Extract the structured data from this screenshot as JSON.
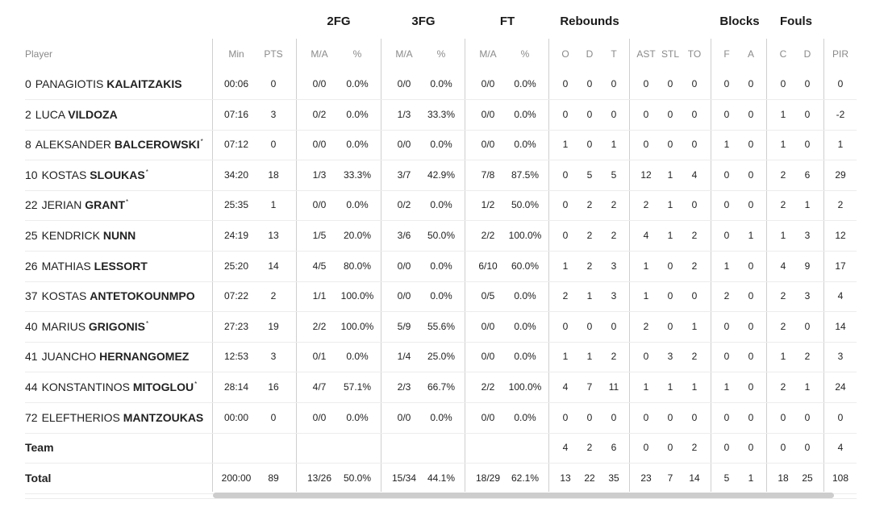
{
  "groups": {
    "fg2": "2FG",
    "fg3": "3FG",
    "ft": "FT",
    "rebounds": "Rebounds",
    "blocks": "Blocks",
    "fouls": "Fouls"
  },
  "headers": {
    "player": "Player",
    "min": "Min",
    "pts": "PTS",
    "fg2_ma": "M/A",
    "fg2_pct": "%",
    "fg3_ma": "M/A",
    "fg3_pct": "%",
    "ft_ma": "M/A",
    "ft_pct": "%",
    "reb_o": "O",
    "reb_d": "D",
    "reb_t": "T",
    "ast": "AST",
    "stl": "STL",
    "to": "TO",
    "blk_f": "F",
    "blk_a": "A",
    "foul_c": "C",
    "foul_d": "D",
    "pir": "PIR"
  },
  "players": [
    {
      "num": "0",
      "first": "PANAGIOTIS",
      "last": "KALAITZAKIS",
      "mark": "",
      "min": "00:06",
      "pts": "0",
      "fg2_ma": "0/0",
      "fg2_pct": "0.0%",
      "fg3_ma": "0/0",
      "fg3_pct": "0.0%",
      "ft_ma": "0/0",
      "ft_pct": "0.0%",
      "reb_o": "0",
      "reb_d": "0",
      "reb_t": "0",
      "ast": "0",
      "stl": "0",
      "to": "0",
      "blk_f": "0",
      "blk_a": "0",
      "foul_c": "0",
      "foul_d": "0",
      "pir": "0"
    },
    {
      "num": "2",
      "first": "LUCA",
      "last": "VILDOZA",
      "mark": "",
      "min": "07:16",
      "pts": "3",
      "fg2_ma": "0/2",
      "fg2_pct": "0.0%",
      "fg3_ma": "1/3",
      "fg3_pct": "33.3%",
      "ft_ma": "0/0",
      "ft_pct": "0.0%",
      "reb_o": "0",
      "reb_d": "0",
      "reb_t": "0",
      "ast": "0",
      "stl": "0",
      "to": "0",
      "blk_f": "0",
      "blk_a": "0",
      "foul_c": "1",
      "foul_d": "0",
      "pir": "-2"
    },
    {
      "num": "8",
      "first": "ALEKSANDER",
      "last": "BALCEROWSKI",
      "mark": "*",
      "min": "07:12",
      "pts": "0",
      "fg2_ma": "0/0",
      "fg2_pct": "0.0%",
      "fg3_ma": "0/0",
      "fg3_pct": "0.0%",
      "ft_ma": "0/0",
      "ft_pct": "0.0%",
      "reb_o": "1",
      "reb_d": "0",
      "reb_t": "1",
      "ast": "0",
      "stl": "0",
      "to": "0",
      "blk_f": "1",
      "blk_a": "0",
      "foul_c": "1",
      "foul_d": "0",
      "pir": "1"
    },
    {
      "num": "10",
      "first": "KOSTAS",
      "last": "SLOUKAS",
      "mark": "*",
      "min": "34:20",
      "pts": "18",
      "fg2_ma": "1/3",
      "fg2_pct": "33.3%",
      "fg3_ma": "3/7",
      "fg3_pct": "42.9%",
      "ft_ma": "7/8",
      "ft_pct": "87.5%",
      "reb_o": "0",
      "reb_d": "5",
      "reb_t": "5",
      "ast": "12",
      "stl": "1",
      "to": "4",
      "blk_f": "0",
      "blk_a": "0",
      "foul_c": "2",
      "foul_d": "6",
      "pir": "29"
    },
    {
      "num": "22",
      "first": "JERIAN",
      "last": "GRANT",
      "mark": "*",
      "min": "25:35",
      "pts": "1",
      "fg2_ma": "0/0",
      "fg2_pct": "0.0%",
      "fg3_ma": "0/2",
      "fg3_pct": "0.0%",
      "ft_ma": "1/2",
      "ft_pct": "50.0%",
      "reb_o": "0",
      "reb_d": "2",
      "reb_t": "2",
      "ast": "2",
      "stl": "1",
      "to": "0",
      "blk_f": "0",
      "blk_a": "0",
      "foul_c": "2",
      "foul_d": "1",
      "pir": "2"
    },
    {
      "num": "25",
      "first": "KENDRICK",
      "last": "NUNN",
      "mark": "",
      "min": "24:19",
      "pts": "13",
      "fg2_ma": "1/5",
      "fg2_pct": "20.0%",
      "fg3_ma": "3/6",
      "fg3_pct": "50.0%",
      "ft_ma": "2/2",
      "ft_pct": "100.0%",
      "reb_o": "0",
      "reb_d": "2",
      "reb_t": "2",
      "ast": "4",
      "stl": "1",
      "to": "2",
      "blk_f": "0",
      "blk_a": "1",
      "foul_c": "1",
      "foul_d": "3",
      "pir": "12"
    },
    {
      "num": "26",
      "first": "MATHIAS",
      "last": "LESSORT",
      "mark": "",
      "min": "25:20",
      "pts": "14",
      "fg2_ma": "4/5",
      "fg2_pct": "80.0%",
      "fg3_ma": "0/0",
      "fg3_pct": "0.0%",
      "ft_ma": "6/10",
      "ft_pct": "60.0%",
      "reb_o": "1",
      "reb_d": "2",
      "reb_t": "3",
      "ast": "1",
      "stl": "0",
      "to": "2",
      "blk_f": "1",
      "blk_a": "0",
      "foul_c": "4",
      "foul_d": "9",
      "pir": "17"
    },
    {
      "num": "37",
      "first": "KOSTAS",
      "last": "ANTETOKOUNMPO",
      "mark": "",
      "min": "07:22",
      "pts": "2",
      "fg2_ma": "1/1",
      "fg2_pct": "100.0%",
      "fg3_ma": "0/0",
      "fg3_pct": "0.0%",
      "ft_ma": "0/5",
      "ft_pct": "0.0%",
      "reb_o": "2",
      "reb_d": "1",
      "reb_t": "3",
      "ast": "1",
      "stl": "0",
      "to": "0",
      "blk_f": "2",
      "blk_a": "0",
      "foul_c": "2",
      "foul_d": "3",
      "pir": "4"
    },
    {
      "num": "40",
      "first": "MARIUS",
      "last": "GRIGONIS",
      "mark": "*",
      "min": "27:23",
      "pts": "19",
      "fg2_ma": "2/2",
      "fg2_pct": "100.0%",
      "fg3_ma": "5/9",
      "fg3_pct": "55.6%",
      "ft_ma": "0/0",
      "ft_pct": "0.0%",
      "reb_o": "0",
      "reb_d": "0",
      "reb_t": "0",
      "ast": "2",
      "stl": "0",
      "to": "1",
      "blk_f": "0",
      "blk_a": "0",
      "foul_c": "2",
      "foul_d": "0",
      "pir": "14"
    },
    {
      "num": "41",
      "first": "JUANCHO",
      "last": "HERNANGOMEZ",
      "mark": "",
      "min": "12:53",
      "pts": "3",
      "fg2_ma": "0/1",
      "fg2_pct": "0.0%",
      "fg3_ma": "1/4",
      "fg3_pct": "25.0%",
      "ft_ma": "0/0",
      "ft_pct": "0.0%",
      "reb_o": "1",
      "reb_d": "1",
      "reb_t": "2",
      "ast": "0",
      "stl": "3",
      "to": "2",
      "blk_f": "0",
      "blk_a": "0",
      "foul_c": "1",
      "foul_d": "2",
      "pir": "3"
    },
    {
      "num": "44",
      "first": "KONSTANTINOS",
      "last": "MITOGLOU",
      "mark": "*",
      "min": "28:14",
      "pts": "16",
      "fg2_ma": "4/7",
      "fg2_pct": "57.1%",
      "fg3_ma": "2/3",
      "fg3_pct": "66.7%",
      "ft_ma": "2/2",
      "ft_pct": "100.0%",
      "reb_o": "4",
      "reb_d": "7",
      "reb_t": "11",
      "ast": "1",
      "stl": "1",
      "to": "1",
      "blk_f": "1",
      "blk_a": "0",
      "foul_c": "2",
      "foul_d": "1",
      "pir": "24"
    },
    {
      "num": "72",
      "first": "ELEFTHERIOS",
      "last": "MANTZOUKAS",
      "mark": "",
      "min": "00:00",
      "pts": "0",
      "fg2_ma": "0/0",
      "fg2_pct": "0.0%",
      "fg3_ma": "0/0",
      "fg3_pct": "0.0%",
      "ft_ma": "0/0",
      "ft_pct": "0.0%",
      "reb_o": "0",
      "reb_d": "0",
      "reb_t": "0",
      "ast": "0",
      "stl": "0",
      "to": "0",
      "blk_f": "0",
      "blk_a": "0",
      "foul_c": "0",
      "foul_d": "0",
      "pir": "0"
    }
  ],
  "team": {
    "label": "Team",
    "min": "",
    "pts": "",
    "fg2_ma": "",
    "fg2_pct": "",
    "fg3_ma": "",
    "fg3_pct": "",
    "ft_ma": "",
    "ft_pct": "",
    "reb_o": "4",
    "reb_d": "2",
    "reb_t": "6",
    "ast": "0",
    "stl": "0",
    "to": "2",
    "blk_f": "0",
    "blk_a": "0",
    "foul_c": "0",
    "foul_d": "0",
    "pir": "4"
  },
  "total": {
    "label": "Total",
    "min": "200:00",
    "pts": "89",
    "fg2_ma": "13/26",
    "fg2_pct": "50.0%",
    "fg3_ma": "15/34",
    "fg3_pct": "44.1%",
    "ft_ma": "18/29",
    "ft_pct": "62.1%",
    "reb_o": "13",
    "reb_d": "22",
    "reb_t": "35",
    "ast": "23",
    "stl": "7",
    "to": "14",
    "blk_f": "5",
    "blk_a": "1",
    "foul_c": "18",
    "foul_d": "25",
    "pir": "108"
  }
}
